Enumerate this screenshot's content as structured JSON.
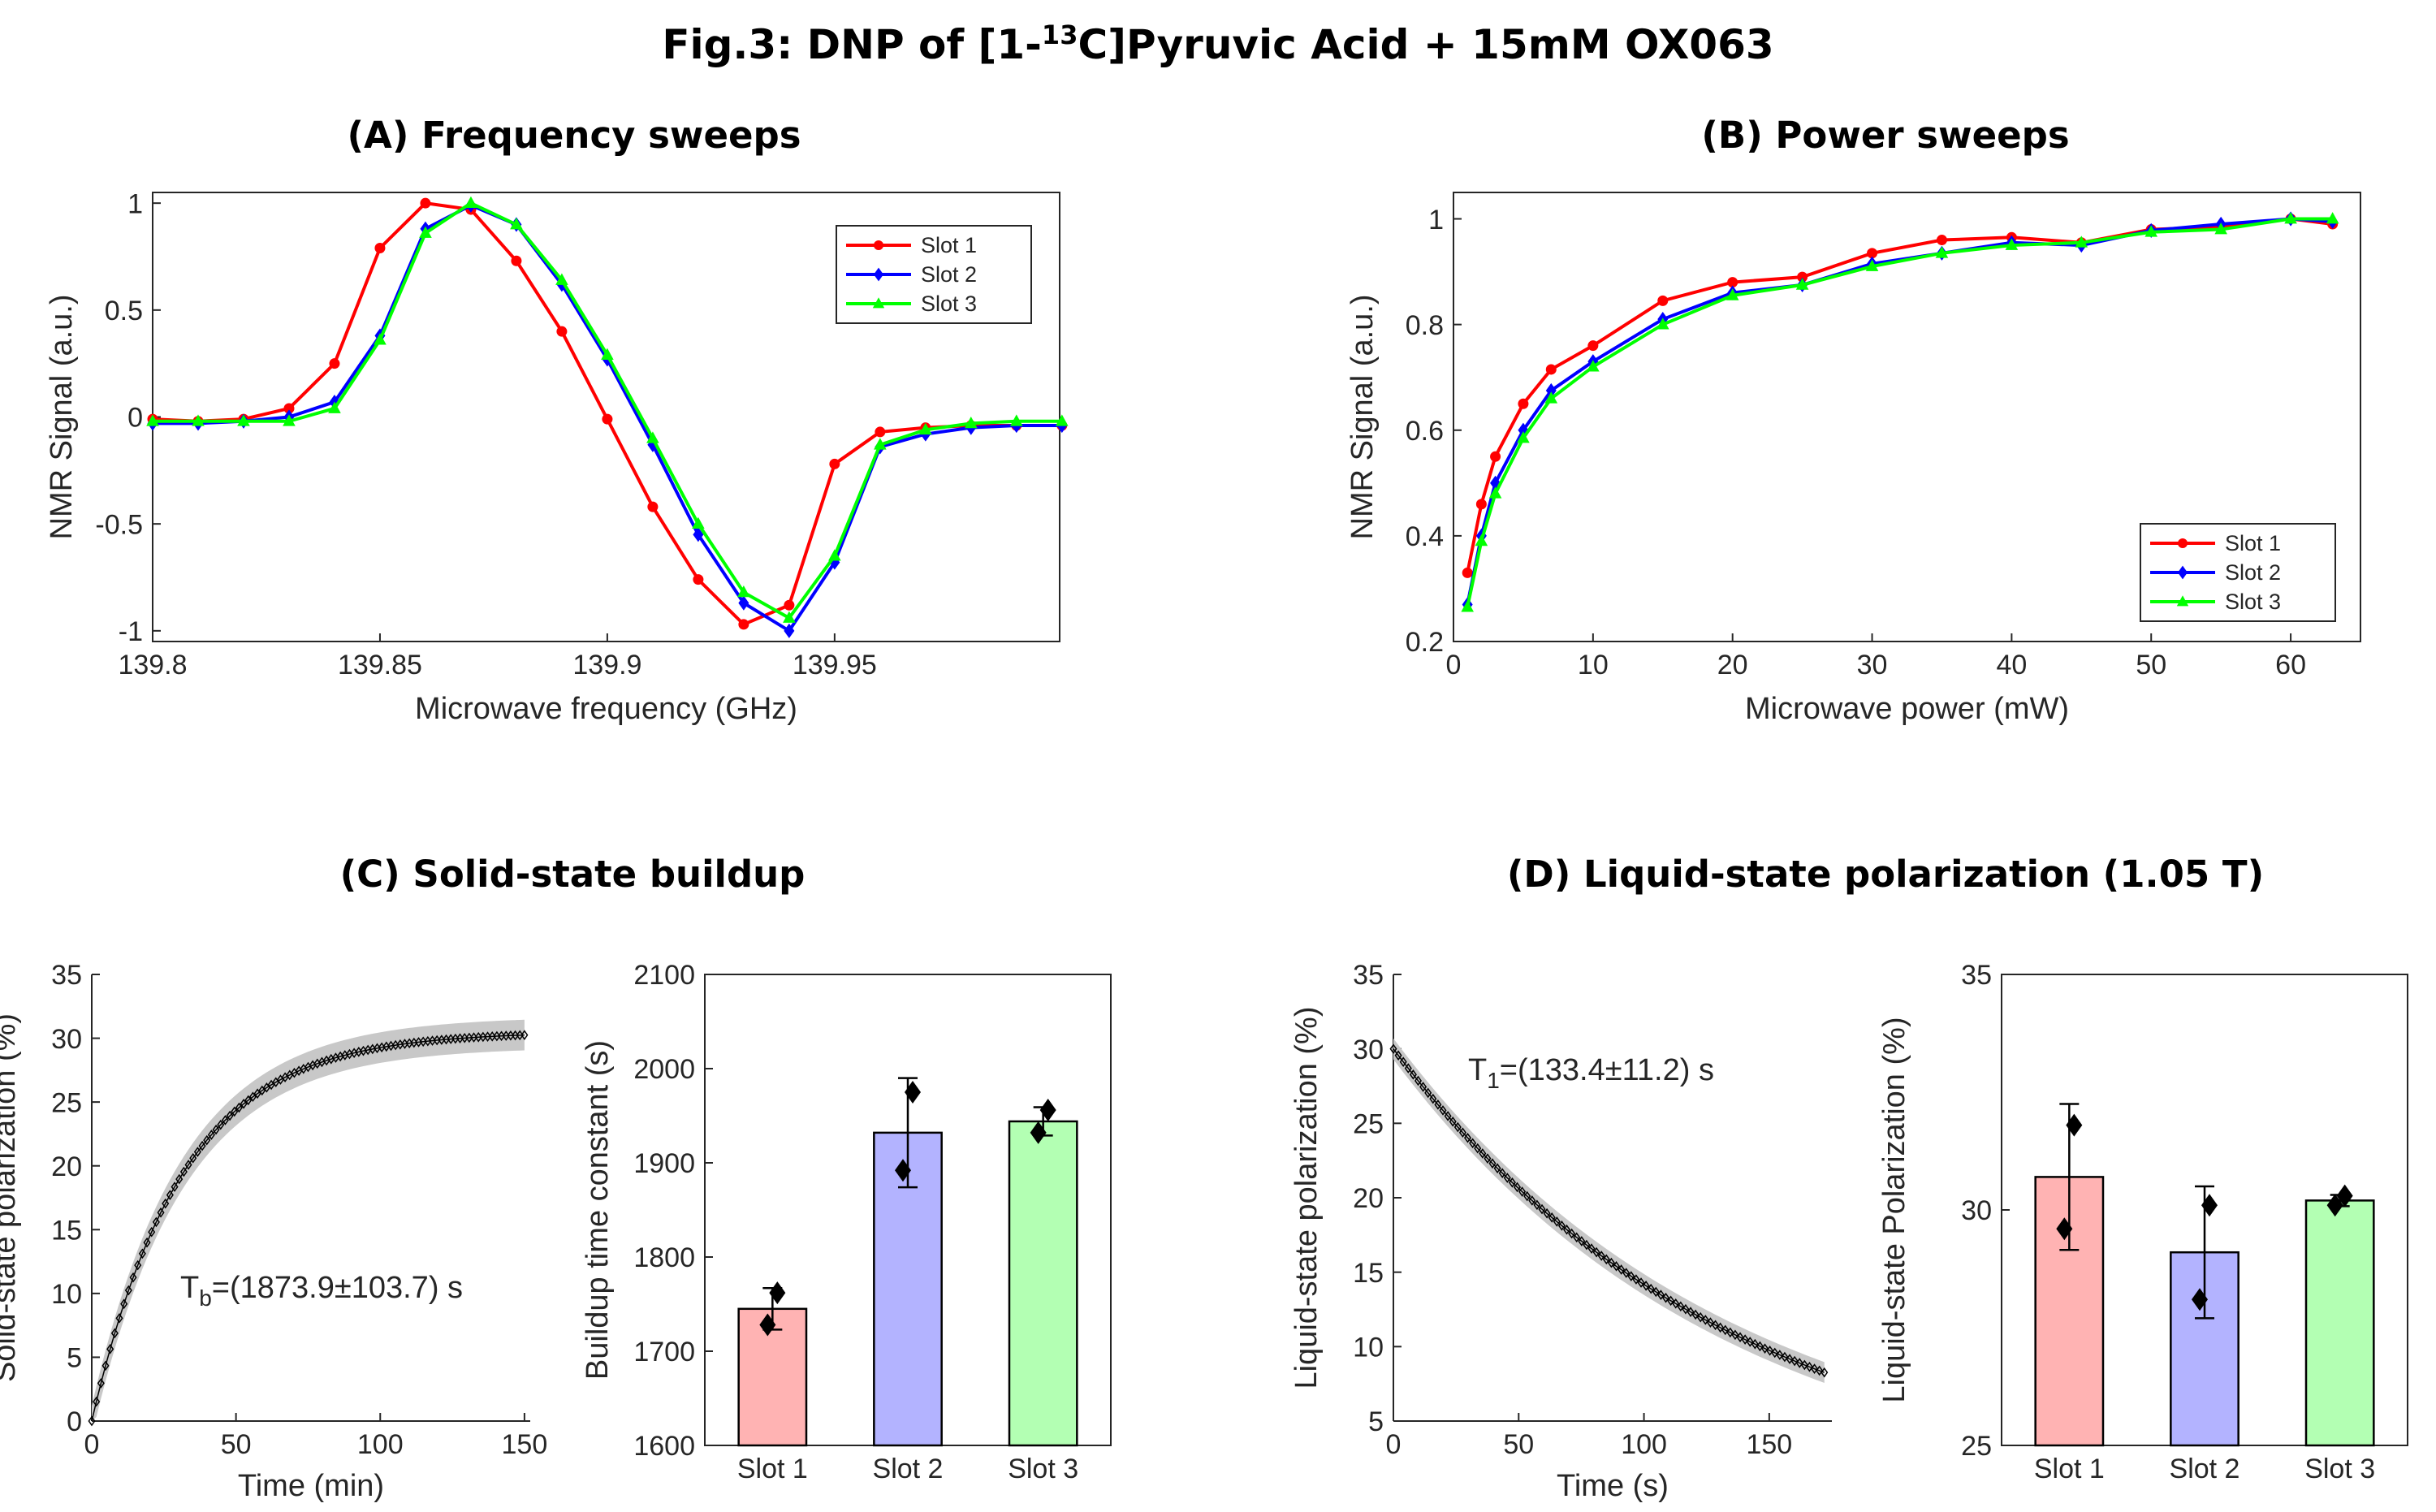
{
  "figure": {
    "title_prefix": "Fig.3: DNP of [1-",
    "title_sup": "13",
    "title_suffix": "C]Pyruvic Acid + 15mM OX063"
  },
  "colors": {
    "slot1": "#ff0000",
    "slot2": "#0000ff",
    "slot3": "#00ff00",
    "bar1": "#ffb3b3",
    "bar2": "#b3b3ff",
    "bar3": "#b3ffb3",
    "shade": "#c8c8c8",
    "axis": "#262626"
  },
  "chart_data": [
    {
      "id": "A",
      "type": "line",
      "title": "(A) Frequency sweeps",
      "xlabel": "Microwave frequency (GHz)",
      "ylabel": "NMR Signal (a.u.)",
      "xlim": [
        139.8,
        139.9995
      ],
      "ylim": [
        -1.05,
        1.05
      ],
      "xticks": [
        139.8,
        139.85,
        139.9,
        139.95
      ],
      "xticklabels": [
        "139.8",
        "139.85",
        "139.9",
        "139.95"
      ],
      "yticks": [
        -1,
        -0.5,
        0,
        0.5,
        1
      ],
      "yticklabels": [
        "-1",
        "-0.5",
        "0",
        "0.5",
        "1"
      ],
      "legend_position": "top-right",
      "x": [
        139.8,
        139.81,
        139.82,
        139.83,
        139.84,
        139.85,
        139.86,
        139.87,
        139.88,
        139.89,
        139.9,
        139.91,
        139.92,
        139.93,
        139.94,
        139.95,
        139.96,
        139.97,
        139.98,
        139.99,
        140.0
      ],
      "series": [
        {
          "name": "Slot 1",
          "marker": "circle",
          "values": [
            -0.01,
            -0.02,
            -0.01,
            0.04,
            0.25,
            0.79,
            1.0,
            0.97,
            0.73,
            0.4,
            -0.01,
            -0.42,
            -0.76,
            -0.97,
            -0.88,
            -0.22,
            -0.07,
            -0.05,
            -0.04,
            -0.04,
            -0.04
          ]
        },
        {
          "name": "Slot 2",
          "marker": "diamond",
          "values": [
            -0.03,
            -0.03,
            -0.02,
            0.0,
            0.07,
            0.38,
            0.88,
            0.99,
            0.9,
            0.62,
            0.27,
            -0.13,
            -0.55,
            -0.87,
            -1.0,
            -0.68,
            -0.14,
            -0.08,
            -0.05,
            -0.04,
            -0.04
          ]
        },
        {
          "name": "Slot 3",
          "marker": "triangle",
          "values": [
            -0.02,
            -0.02,
            -0.02,
            -0.02,
            0.04,
            0.36,
            0.86,
            1.0,
            0.9,
            0.64,
            0.29,
            -0.1,
            -0.5,
            -0.82,
            -0.94,
            -0.65,
            -0.13,
            -0.06,
            -0.03,
            -0.02,
            -0.02
          ]
        }
      ]
    },
    {
      "id": "B",
      "type": "line",
      "title": "(B) Power sweeps",
      "xlabel": "Microwave power (mW)",
      "ylabel": "NMR Signal (a.u.)",
      "xlim": [
        0,
        65
      ],
      "ylim": [
        0.2,
        1.05
      ],
      "xticks": [
        0,
        10,
        20,
        30,
        40,
        50,
        60
      ],
      "xticklabels": [
        "0",
        "10",
        "20",
        "30",
        "40",
        "50",
        "60"
      ],
      "yticks": [
        0.2,
        0.4,
        0.6,
        0.8,
        1
      ],
      "yticklabels": [
        "0.2",
        "0.4",
        "0.6",
        "0.8",
        "1"
      ],
      "legend_position": "bottom-right",
      "x": [
        1,
        2,
        3,
        5,
        7,
        10,
        15,
        20,
        25,
        30,
        35,
        40,
        45,
        50,
        55,
        60,
        63
      ],
      "series": [
        {
          "name": "Slot 1",
          "marker": "circle",
          "values": [
            0.33,
            0.46,
            0.55,
            0.65,
            0.715,
            0.76,
            0.845,
            0.88,
            0.89,
            0.935,
            0.96,
            0.965,
            0.955,
            0.98,
            0.985,
            1.0,
            0.99
          ]
        },
        {
          "name": "Slot 2",
          "marker": "diamond",
          "values": [
            0.27,
            0.4,
            0.5,
            0.6,
            0.675,
            0.73,
            0.81,
            0.86,
            0.875,
            0.915,
            0.935,
            0.955,
            0.95,
            0.978,
            0.99,
            1.0,
            0.995
          ]
        },
        {
          "name": "Slot 3",
          "marker": "triangle",
          "values": [
            0.265,
            0.39,
            0.48,
            0.585,
            0.66,
            0.72,
            0.8,
            0.855,
            0.875,
            0.91,
            0.935,
            0.95,
            0.955,
            0.975,
            0.98,
            1.0,
            1.0
          ]
        }
      ]
    },
    {
      "id": "C1",
      "type": "line",
      "group_title": "(C) Solid-state buildup",
      "xlabel": "Time (min)",
      "ylabel": "Solid-state polarization (%)",
      "xlim": [
        0,
        152
      ],
      "ylim": [
        0,
        35
      ],
      "xticks": [
        0,
        50,
        100,
        150
      ],
      "xticklabels": [
        "0",
        "50",
        "100",
        "150"
      ],
      "yticks": [
        0,
        5,
        10,
        15,
        20,
        25,
        30,
        35
      ],
      "yticklabels": [
        "0",
        "5",
        "10",
        "15",
        "20",
        "25",
        "30",
        "35"
      ],
      "model": {
        "kind": "buildup",
        "p_max": 30.5,
        "tau_min": 31.2,
        "t_start": 0,
        "t_end": 150,
        "n_points": 95,
        "band": 1.2
      },
      "annotation": {
        "text_main": "T",
        "text_sub": "b",
        "text_rest": "=(1873.9±103.7) s"
      }
    },
    {
      "id": "C2",
      "type": "bar",
      "xlabel": "",
      "ylabel": "Buildup time constant (s)",
      "ylim": [
        1600,
        2100
      ],
      "yticks": [
        1600,
        1700,
        1800,
        1900,
        2000,
        2100
      ],
      "yticklabels": [
        "1600",
        "1700",
        "1800",
        "1900",
        "2000",
        "2100"
      ],
      "categories": [
        "Slot 1",
        "Slot 2",
        "Slot 3"
      ],
      "values": [
        1745,
        1932,
        1944
      ],
      "errors": [
        22,
        58,
        15
      ],
      "points": [
        [
          1762,
          1728
        ],
        [
          1975,
          1892
        ],
        [
          1956,
          1932
        ]
      ]
    },
    {
      "id": "D1",
      "type": "line",
      "group_title": "(D) Liquid-state polarization (1.05 T)",
      "xlabel": "Time (s)",
      "ylabel": "Liquid-state polarization (%)",
      "xlim": [
        0,
        175
      ],
      "ylim": [
        5,
        35
      ],
      "xticks": [
        0,
        50,
        100,
        150
      ],
      "xticklabels": [
        "0",
        "50",
        "100",
        "150"
      ],
      "yticks": [
        5,
        10,
        15,
        20,
        25,
        30,
        35
      ],
      "yticklabels": [
        "5",
        "10",
        "15",
        "20",
        "25",
        "30",
        "35"
      ],
      "model": {
        "kind": "decay",
        "p0": 30.0,
        "tau_s": 133.4,
        "t_start": 0,
        "t_end": 172,
        "n_points": 88,
        "band": 0.7
      },
      "annotation": {
        "text_main": "T",
        "text_sub": "1",
        "text_rest": "=(133.4±11.2) s"
      }
    },
    {
      "id": "D2",
      "type": "bar",
      "xlabel": "",
      "ylabel": "Liquid-state Polarization (%)",
      "ylim": [
        25,
        35
      ],
      "yticks": [
        25,
        30,
        35
      ],
      "yticklabels": [
        "25",
        "30",
        "35"
      ],
      "categories": [
        "Slot 1",
        "Slot 2",
        "Slot 3"
      ],
      "values": [
        30.7,
        29.1,
        30.2
      ],
      "errors": [
        1.55,
        1.4,
        0.12
      ],
      "points": [
        [
          31.8,
          29.6
        ],
        [
          30.1,
          28.1
        ],
        [
          30.3,
          30.1
        ]
      ]
    }
  ]
}
